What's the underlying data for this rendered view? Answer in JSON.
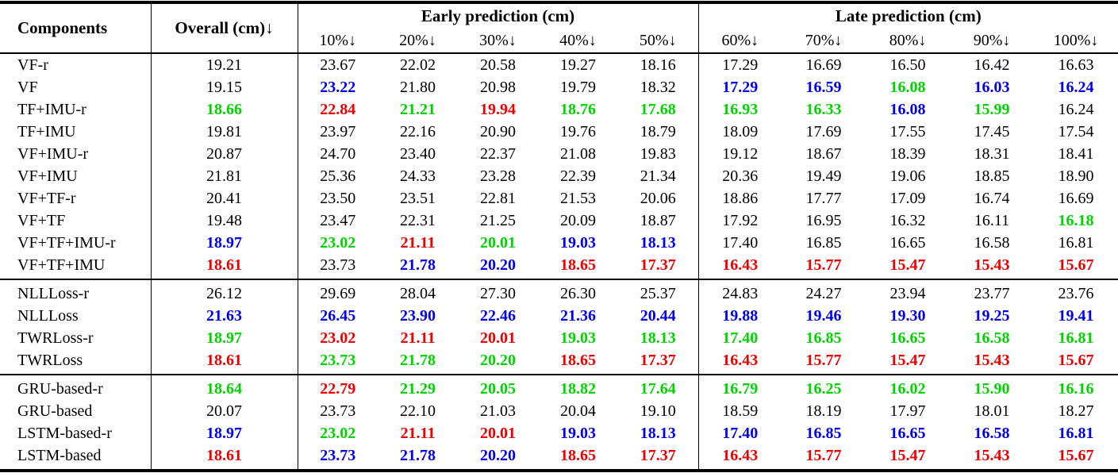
{
  "table": {
    "header": {
      "components": "Components",
      "overall": "Overall (cm)",
      "early_group": "Early prediction (cm)",
      "late_group": "Late prediction (cm)",
      "percent_columns": [
        "10%",
        "20%",
        "30%",
        "40%",
        "50%",
        "60%",
        "70%",
        "80%",
        "90%",
        "100%"
      ],
      "arrow": "↓"
    },
    "value_colors": {
      "k": "#000000",
      "r": "#ee0000",
      "g": "#00d500",
      "b": "#0000ee"
    },
    "sections": [
      {
        "rows": [
          {
            "component": "VF-r",
            "values": [
              "19.21",
              "23.67",
              "22.02",
              "20.58",
              "19.27",
              "18.16",
              "17.29",
              "16.69",
              "16.50",
              "16.42",
              "16.63"
            ],
            "colors": [
              "k",
              "k",
              "k",
              "k",
              "k",
              "k",
              "k",
              "k",
              "k",
              "k",
              "k"
            ]
          },
          {
            "component": "VF",
            "values": [
              "19.15",
              "23.22",
              "21.80",
              "20.98",
              "19.79",
              "18.32",
              "17.29",
              "16.59",
              "16.08",
              "16.03",
              "16.24"
            ],
            "colors": [
              "k",
              "b",
              "k",
              "k",
              "k",
              "k",
              "b",
              "b",
              "g",
              "b",
              "b"
            ]
          },
          {
            "component": "TF+IMU-r",
            "values": [
              "18.66",
              "22.84",
              "21.21",
              "19.94",
              "18.76",
              "17.68",
              "16.93",
              "16.33",
              "16.08",
              "15.99",
              "16.24"
            ],
            "colors": [
              "g",
              "r",
              "g",
              "r",
              "g",
              "g",
              "g",
              "g",
              "b",
              "g",
              "k"
            ]
          },
          {
            "component": "TF+IMU",
            "values": [
              "19.81",
              "23.97",
              "22.16",
              "20.90",
              "19.76",
              "18.79",
              "18.09",
              "17.69",
              "17.55",
              "17.45",
              "17.54"
            ],
            "colors": [
              "k",
              "k",
              "k",
              "k",
              "k",
              "k",
              "k",
              "k",
              "k",
              "k",
              "k"
            ]
          },
          {
            "component": "VF+IMU-r",
            "values": [
              "20.87",
              "24.70",
              "23.40",
              "22.37",
              "21.08",
              "19.83",
              "19.12",
              "18.67",
              "18.39",
              "18.31",
              "18.41"
            ],
            "colors": [
              "k",
              "k",
              "k",
              "k",
              "k",
              "k",
              "k",
              "k",
              "k",
              "k",
              "k"
            ]
          },
          {
            "component": "VF+IMU",
            "values": [
              "21.81",
              "25.36",
              "24.33",
              "23.28",
              "22.39",
              "21.34",
              "20.36",
              "19.49",
              "19.06",
              "18.85",
              "18.90"
            ],
            "colors": [
              "k",
              "k",
              "k",
              "k",
              "k",
              "k",
              "k",
              "k",
              "k",
              "k",
              "k"
            ]
          },
          {
            "component": "VF+TF-r",
            "values": [
              "20.41",
              "23.50",
              "23.51",
              "22.81",
              "21.53",
              "20.06",
              "18.86",
              "17.77",
              "17.09",
              "16.74",
              "16.69"
            ],
            "colors": [
              "k",
              "k",
              "k",
              "k",
              "k",
              "k",
              "k",
              "k",
              "k",
              "k",
              "k"
            ]
          },
          {
            "component": "VF+TF",
            "values": [
              "19.48",
              "23.47",
              "22.31",
              "21.25",
              "20.09",
              "18.87",
              "17.92",
              "16.95",
              "16.32",
              "16.11",
              "16.18"
            ],
            "colors": [
              "k",
              "k",
              "k",
              "k",
              "k",
              "k",
              "k",
              "k",
              "k",
              "k",
              "g"
            ]
          },
          {
            "component": "VF+TF+IMU-r",
            "values": [
              "18.97",
              "23.02",
              "21.11",
              "20.01",
              "19.03",
              "18.13",
              "17.40",
              "16.85",
              "16.65",
              "16.58",
              "16.81"
            ],
            "colors": [
              "b",
              "g",
              "r",
              "g",
              "b",
              "b",
              "k",
              "k",
              "k",
              "k",
              "k"
            ]
          },
          {
            "component": "VF+TF+IMU",
            "values": [
              "18.61",
              "23.73",
              "21.78",
              "20.20",
              "18.65",
              "17.37",
              "16.43",
              "15.77",
              "15.47",
              "15.43",
              "15.67"
            ],
            "colors": [
              "r",
              "k",
              "b",
              "b",
              "r",
              "r",
              "r",
              "r",
              "r",
              "r",
              "r"
            ]
          }
        ]
      },
      {
        "rows": [
          {
            "component": "NLLLoss-r",
            "values": [
              "26.12",
              "29.69",
              "28.04",
              "27.30",
              "26.30",
              "25.37",
              "24.83",
              "24.27",
              "23.94",
              "23.77",
              "23.76"
            ],
            "colors": [
              "k",
              "k",
              "k",
              "k",
              "k",
              "k",
              "k",
              "k",
              "k",
              "k",
              "k"
            ]
          },
          {
            "component": "NLLLoss",
            "values": [
              "21.63",
              "26.45",
              "23.90",
              "22.46",
              "21.36",
              "20.44",
              "19.88",
              "19.46",
              "19.30",
              "19.25",
              "19.41"
            ],
            "colors": [
              "b",
              "b",
              "b",
              "b",
              "b",
              "b",
              "b",
              "b",
              "b",
              "b",
              "b"
            ]
          },
          {
            "component": "TWRLoss-r",
            "values": [
              "18.97",
              "23.02",
              "21.11",
              "20.01",
              "19.03",
              "18.13",
              "17.40",
              "16.85",
              "16.65",
              "16.58",
              "16.81"
            ],
            "colors": [
              "g",
              "r",
              "r",
              "r",
              "g",
              "g",
              "g",
              "g",
              "g",
              "g",
              "g"
            ]
          },
          {
            "component": "TWRLoss",
            "values": [
              "18.61",
              "23.73",
              "21.78",
              "20.20",
              "18.65",
              "17.37",
              "16.43",
              "15.77",
              "15.47",
              "15.43",
              "15.67"
            ],
            "colors": [
              "r",
              "g",
              "g",
              "g",
              "r",
              "r",
              "r",
              "r",
              "r",
              "r",
              "r"
            ]
          }
        ]
      },
      {
        "rows": [
          {
            "component": "GRU-based-r",
            "values": [
              "18.64",
              "22.79",
              "21.29",
              "20.05",
              "18.82",
              "17.64",
              "16.79",
              "16.25",
              "16.02",
              "15.90",
              "16.16"
            ],
            "colors": [
              "g",
              "r",
              "g",
              "g",
              "g",
              "g",
              "g",
              "g",
              "g",
              "g",
              "g"
            ]
          },
          {
            "component": "GRU-based",
            "values": [
              "20.07",
              "23.73",
              "22.10",
              "21.03",
              "20.04",
              "19.10",
              "18.59",
              "18.19",
              "17.97",
              "18.01",
              "18.27"
            ],
            "colors": [
              "k",
              "k",
              "k",
              "k",
              "k",
              "k",
              "k",
              "k",
              "k",
              "k",
              "k"
            ]
          },
          {
            "component": "LSTM-based-r",
            "values": [
              "18.97",
              "23.02",
              "21.11",
              "20.01",
              "19.03",
              "18.13",
              "17.40",
              "16.85",
              "16.65",
              "16.58",
              "16.81"
            ],
            "colors": [
              "b",
              "g",
              "r",
              "r",
              "b",
              "b",
              "b",
              "b",
              "b",
              "b",
              "b"
            ]
          },
          {
            "component": "LSTM-based",
            "values": [
              "18.61",
              "23.73",
              "21.78",
              "20.20",
              "18.65",
              "17.37",
              "16.43",
              "15.77",
              "15.47",
              "15.43",
              "15.67"
            ],
            "colors": [
              "r",
              "b",
              "b",
              "b",
              "r",
              "r",
              "r",
              "r",
              "r",
              "r",
              "r"
            ]
          }
        ]
      }
    ]
  }
}
